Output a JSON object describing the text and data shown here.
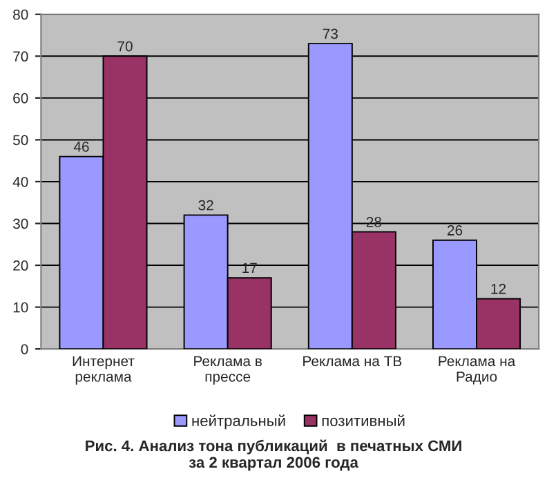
{
  "chart_data": {
    "type": "bar",
    "title": "Рис. 4. Анализ тона публикаций  в печатных СМИ\nза 2 квартал 2006 года",
    "categories": [
      "Интернет\nреклама",
      "Реклама в\nпрессе",
      "Реклама на ТВ",
      "Реклама на\nРадио"
    ],
    "series": [
      {
        "name": "нейтральный",
        "color": "#9999ff",
        "values": [
          46,
          32,
          73,
          26
        ]
      },
      {
        "name": "позитивный",
        "color": "#993366",
        "values": [
          70,
          17,
          28,
          12
        ]
      }
    ],
    "ylim": [
      0,
      80
    ],
    "yticks": [
      0,
      10,
      20,
      30,
      40,
      50,
      60,
      70,
      80
    ],
    "grid": "y",
    "legend": "bottom",
    "data_labels": true
  }
}
